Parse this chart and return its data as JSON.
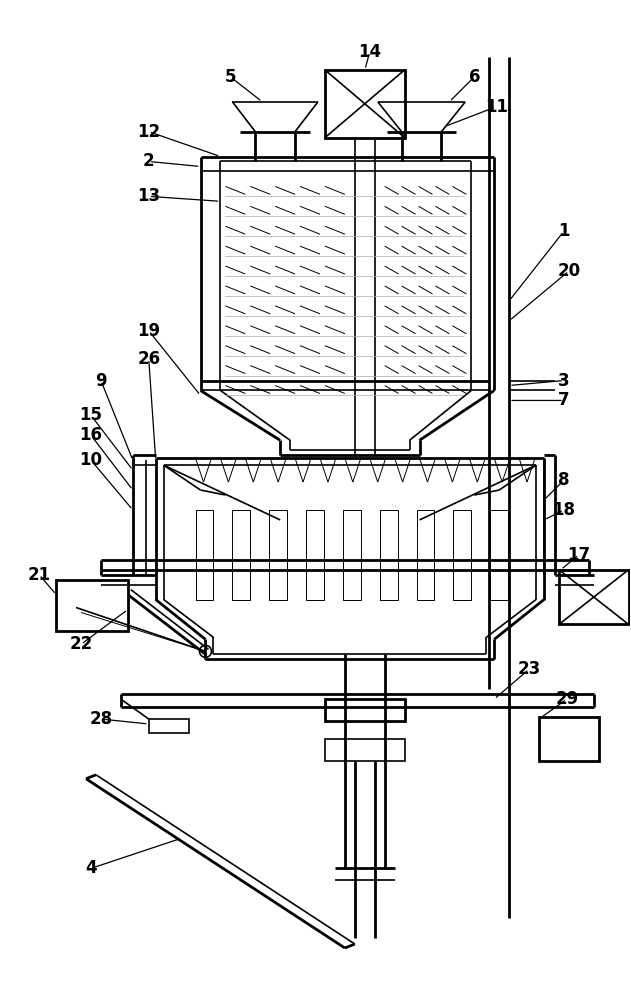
{
  "background_color": "#ffffff",
  "line_color": "#000000",
  "lw_thick": 2.0,
  "lw_med": 1.2,
  "lw_thin": 0.7,
  "label_fontsize": 12,
  "fig_width": 6.31,
  "fig_height": 10.0
}
